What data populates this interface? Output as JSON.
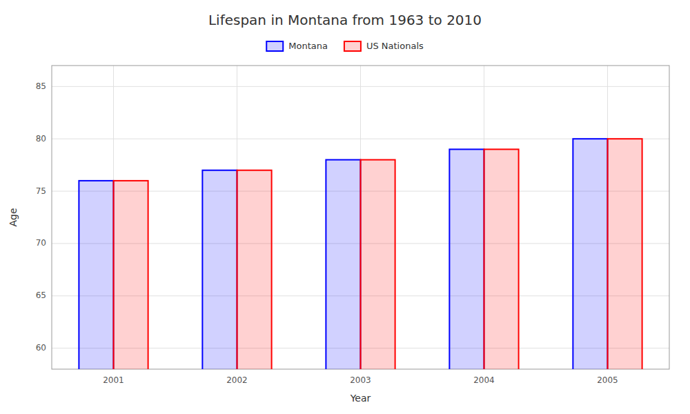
{
  "chart_data": {
    "type": "bar",
    "title": "Lifespan in Montana from 1963 to 2010",
    "xlabel": "Year",
    "ylabel": "Age",
    "categories": [
      "2001",
      "2002",
      "2003",
      "2004",
      "2005"
    ],
    "series": [
      {
        "name": "Montana",
        "color": "#0000ff",
        "values": [
          76,
          77,
          78,
          79,
          80
        ]
      },
      {
        "name": "US Nationals",
        "color": "#ff0000",
        "values": [
          76,
          77,
          78,
          79,
          80
        ]
      }
    ],
    "ylim": [
      58,
      87
    ],
    "yticks": [
      60,
      65,
      70,
      75,
      80,
      85
    ],
    "grid": true,
    "legend": "top"
  }
}
